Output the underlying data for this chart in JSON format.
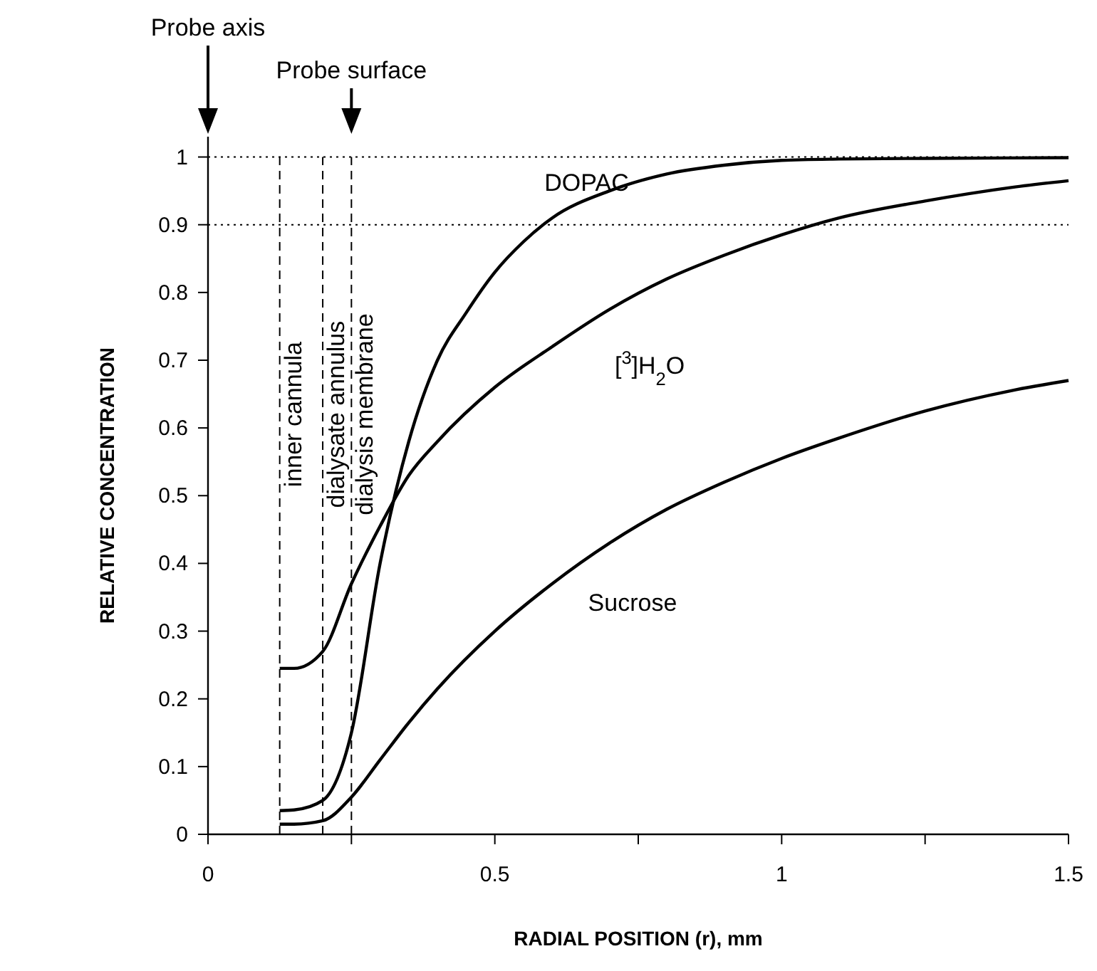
{
  "chart_data": {
    "type": "line",
    "xlabel": "RADIAL  POSITION  (r),  mm",
    "ylabel": "RELATIVE CONCENTRATION",
    "xlim": [
      0,
      1.5
    ],
    "ylim": [
      0,
      1.03
    ],
    "xticks": [
      0,
      {
        "value": 0.25,
        "label": null
      },
      0.5,
      {
        "value": 0.75,
        "label": null
      },
      1,
      {
        "value": 1.25,
        "label": null
      },
      1.5
    ],
    "yticks": [
      0,
      0.1,
      0.2,
      0.3,
      0.4,
      0.5,
      0.6,
      0.7,
      0.8,
      0.9,
      1
    ],
    "grid": false,
    "line_style": "solid",
    "series": [
      {
        "name": "DOPAC",
        "color": "#000000",
        "x": [
          0.125,
          0.15,
          0.2,
          0.25,
          0.25,
          0.3,
          0.35,
          0.4,
          0.45,
          0.5,
          0.55,
          0.6,
          0.7,
          0.8,
          0.9,
          1.0,
          1.1,
          1.25,
          1.5
        ],
        "values": [
          0.035,
          0.036,
          0.05,
          0.15,
          0.15,
          0.4,
          0.58,
          0.7,
          0.77,
          0.83,
          0.875,
          0.91,
          0.95,
          0.975,
          0.988,
          0.995,
          0.997,
          0.998,
          0.999
        ]
      },
      {
        "name": "[$^{3}$]H$_{2}$O",
        "color": "#000000",
        "x": [
          0.125,
          0.15,
          0.2,
          0.25,
          0.3,
          0.35,
          0.4,
          0.5,
          0.6,
          0.7,
          0.8,
          0.9,
          1.0,
          1.1,
          1.25,
          1.4,
          1.5
        ],
        "values": [
          0.245,
          0.245,
          0.27,
          0.37,
          0.455,
          0.53,
          0.58,
          0.66,
          0.72,
          0.775,
          0.82,
          0.855,
          0.885,
          0.91,
          0.935,
          0.955,
          0.965
        ]
      },
      {
        "name": "Sucrose",
        "color": "#000000",
        "x": [
          0.125,
          0.15,
          0.2,
          0.25,
          0.3,
          0.35,
          0.4,
          0.5,
          0.6,
          0.7,
          0.8,
          0.9,
          1.0,
          1.1,
          1.25,
          1.4,
          1.5
        ],
        "values": [
          0.015,
          0.015,
          0.02,
          0.055,
          0.11,
          0.165,
          0.215,
          0.3,
          0.37,
          0.43,
          0.48,
          0.52,
          0.555,
          0.585,
          0.625,
          0.655,
          0.67
        ]
      }
    ],
    "ref_lines": [
      {
        "axis": "y",
        "value": 1,
        "line_style": "dotted"
      },
      {
        "axis": "y",
        "value": 0.9,
        "line_style": "dotted"
      },
      {
        "axis": "x",
        "value": 0.125,
        "label": "inner cannula",
        "line_style": "dashed"
      },
      {
        "axis": "x",
        "value": 0.2,
        "label": "dialysate annulus",
        "line_style": "dashed"
      },
      {
        "axis": "x",
        "value": 0.25,
        "label": "dialysis membrane",
        "line_style": "dashed"
      }
    ],
    "annotations": [
      "Probe axis",
      "Probe surface"
    ]
  }
}
